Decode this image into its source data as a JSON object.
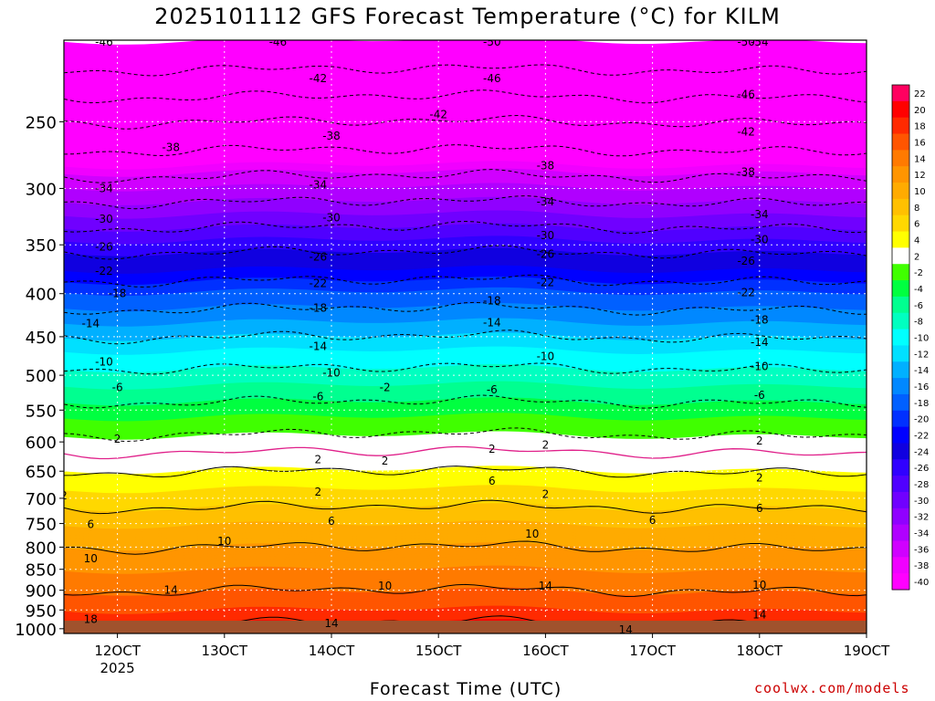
{
  "chart_data": {
    "type": "heatmap",
    "title": "2025101112 GFS Forecast Temperature (°C) for KILM",
    "xlabel": "Forecast Time (UTC)",
    "ylabel": "",
    "x_ticks": [
      "12OCT",
      "13OCT",
      "14OCT",
      "15OCT",
      "16OCT",
      "17OCT",
      "18OCT",
      "19OCT"
    ],
    "x_tick_sublabel": "2025",
    "y_ticks": [
      250,
      300,
      350,
      400,
      450,
      500,
      550,
      600,
      650,
      700,
      750,
      800,
      850,
      900,
      950,
      1000
    ],
    "y_range": [
      200,
      1013
    ],
    "x_range": [
      "11OCT 12Z",
      "19OCT 00Z"
    ],
    "colorbar": {
      "levels": [
        22,
        20,
        18,
        16,
        14,
        12,
        10,
        8,
        6,
        4,
        2,
        -2,
        -4,
        -6,
        -8,
        -10,
        -12,
        -14,
        -16,
        -18,
        -20,
        -22,
        -24,
        -26,
        -28,
        -30,
        -32,
        -34,
        -36,
        -38,
        -40
      ],
      "colors": [
        "#ff0060",
        "#ff0000",
        "#ff2a00",
        "#ff5500",
        "#ff7a00",
        "#ff9500",
        "#ffab00",
        "#ffc000",
        "#ffd800",
        "#ffff00",
        "#ffffff",
        "#40ff00",
        "#00ff40",
        "#00ff90",
        "#00ffc0",
        "#00ffff",
        "#00e0ff",
        "#00b0ff",
        "#0088ff",
        "#0060ff",
        "#0030ff",
        "#0000ff",
        "#1000e0",
        "#3000ff",
        "#5000ff",
        "#7000ff",
        "#9000ff",
        "#b000ff",
        "#d000ff",
        "#f000ff",
        "#ff00ff"
      ]
    },
    "levels_profile": [
      {
        "p": 200,
        "t": -58
      },
      {
        "p": 250,
        "t": -46
      },
      {
        "p": 300,
        "t": -36
      },
      {
        "p": 350,
        "t": -27
      },
      {
        "p": 400,
        "t": -20
      },
      {
        "p": 450,
        "t": -14
      },
      {
        "p": 500,
        "t": -9
      },
      {
        "p": 550,
        "t": -5
      },
      {
        "p": 600,
        "t": -1
      },
      {
        "p": 650,
        "t": 2
      },
      {
        "p": 700,
        "t": 5
      },
      {
        "p": 750,
        "t": 8
      },
      {
        "p": 800,
        "t": 10
      },
      {
        "p": 850,
        "t": 12
      },
      {
        "p": 900,
        "t": 14
      },
      {
        "p": 950,
        "t": 16
      },
      {
        "p": 1000,
        "t": 19
      }
    ],
    "contour_labels": [
      {
        "x": "11OCT 21Z",
        "p": 195,
        "v": "-46"
      },
      {
        "x": "13OCT 12Z",
        "p": 190,
        "v": "-46"
      },
      {
        "x": "15OCT 12Z",
        "p": 178,
        "v": "-50"
      },
      {
        "x": "18OCT 00Z",
        "p": 172,
        "v": "-54"
      },
      {
        "x": "17OCT 21Z",
        "p": 197,
        "v": "-50"
      },
      {
        "x": "13OCT 21Z",
        "p": 222,
        "v": "-42"
      },
      {
        "x": "15OCT 12Z",
        "p": 222,
        "v": "-46"
      },
      {
        "x": "15OCT 00Z",
        "p": 245,
        "v": "-42"
      },
      {
        "x": "17OCT 21Z",
        "p": 232,
        "v": "-46"
      },
      {
        "x": "17OCT 21Z",
        "p": 257,
        "v": "-42"
      },
      {
        "x": "12OCT 12Z",
        "p": 268,
        "v": "-38"
      },
      {
        "x": "14OCT 00Z",
        "p": 260,
        "v": "-38"
      },
      {
        "x": "16OCT 00Z",
        "p": 282,
        "v": "-38"
      },
      {
        "x": "17OCT 21Z",
        "p": 287,
        "v": "-38"
      },
      {
        "x": "11OCT 21Z",
        "p": 300,
        "v": "-34"
      },
      {
        "x": "13OCT 21Z",
        "p": 297,
        "v": "-34"
      },
      {
        "x": "16OCT 00Z",
        "p": 311,
        "v": "-34"
      },
      {
        "x": "18OCT 00Z",
        "p": 322,
        "v": "-34"
      },
      {
        "x": "11OCT 21Z",
        "p": 326,
        "v": "-30"
      },
      {
        "x": "14OCT 00Z",
        "p": 325,
        "v": "-30"
      },
      {
        "x": "16OCT 00Z",
        "p": 341,
        "v": "-30"
      },
      {
        "x": "18OCT 00Z",
        "p": 345,
        "v": "-30"
      },
      {
        "x": "11OCT 21Z",
        "p": 352,
        "v": "-26"
      },
      {
        "x": "13OCT 21Z",
        "p": 362,
        "v": "-26"
      },
      {
        "x": "16OCT 00Z",
        "p": 359,
        "v": "-26"
      },
      {
        "x": "17OCT 21Z",
        "p": 366,
        "v": "-26"
      },
      {
        "x": "11OCT 21Z",
        "p": 376,
        "v": "-22"
      },
      {
        "x": "13OCT 21Z",
        "p": 389,
        "v": "-22"
      },
      {
        "x": "16OCT 00Z",
        "p": 388,
        "v": "-22"
      },
      {
        "x": "17OCT 21Z",
        "p": 399,
        "v": "-22"
      },
      {
        "x": "12OCT 00Z",
        "p": 400,
        "v": "-18"
      },
      {
        "x": "13OCT 21Z",
        "p": 416,
        "v": "-18"
      },
      {
        "x": "15OCT 12Z",
        "p": 408,
        "v": "-18"
      },
      {
        "x": "18OCT 00Z",
        "p": 430,
        "v": "-18"
      },
      {
        "x": "11OCT 18Z",
        "p": 434,
        "v": "-14"
      },
      {
        "x": "13OCT 21Z",
        "p": 462,
        "v": "-14"
      },
      {
        "x": "15OCT 12Z",
        "p": 433,
        "v": "-14"
      },
      {
        "x": "18OCT 00Z",
        "p": 457,
        "v": "-14"
      },
      {
        "x": "11OCT 21Z",
        "p": 482,
        "v": "-10"
      },
      {
        "x": "14OCT 00Z",
        "p": 497,
        "v": "-10"
      },
      {
        "x": "16OCT 00Z",
        "p": 475,
        "v": "-10"
      },
      {
        "x": "18OCT 00Z",
        "p": 488,
        "v": "-10"
      },
      {
        "x": "12OCT 00Z",
        "p": 517,
        "v": "-6"
      },
      {
        "x": "13OCT 21Z",
        "p": 530,
        "v": "-6"
      },
      {
        "x": "15OCT 12Z",
        "p": 520,
        "v": "-6"
      },
      {
        "x": "18OCT 00Z",
        "p": 528,
        "v": "-6"
      },
      {
        "x": "14OCT 12Z",
        "p": 517,
        "v": "-2"
      },
      {
        "x": "12OCT 00Z",
        "p": 595,
        "v": "2"
      },
      {
        "x": "13OCT 21Z",
        "p": 630,
        "v": "2"
      },
      {
        "x": "14OCT 12Z",
        "p": 632,
        "v": "2"
      },
      {
        "x": "15OCT 12Z",
        "p": 612,
        "v": "2"
      },
      {
        "x": "16OCT 00Z",
        "p": 605,
        "v": "2"
      },
      {
        "x": "16OCT 00Z",
        "p": 692,
        "v": "2"
      },
      {
        "x": "18OCT 00Z",
        "p": 598,
        "v": "2"
      },
      {
        "x": "18OCT 00Z",
        "p": 662,
        "v": "2"
      },
      {
        "x": "11OCT 12Z",
        "p": 695,
        "v": "2"
      },
      {
        "x": "13OCT 21Z",
        "p": 688,
        "v": "2"
      },
      {
        "x": "11OCT 18Z",
        "p": 752,
        "v": "6"
      },
      {
        "x": "14OCT 00Z",
        "p": 745,
        "v": "6"
      },
      {
        "x": "15OCT 12Z",
        "p": 668,
        "v": "6"
      },
      {
        "x": "17OCT 00Z",
        "p": 743,
        "v": "6"
      },
      {
        "x": "18OCT 00Z",
        "p": 720,
        "v": "6"
      },
      {
        "x": "11OCT 18Z",
        "p": 825,
        "v": "10"
      },
      {
        "x": "13OCT 00Z",
        "p": 787,
        "v": "10"
      },
      {
        "x": "14OCT 12Z",
        "p": 890,
        "v": "10"
      },
      {
        "x": "15OCT 21Z",
        "p": 772,
        "v": "10"
      },
      {
        "x": "18OCT 00Z",
        "p": 888,
        "v": "10"
      },
      {
        "x": "12OCT 12Z",
        "p": 900,
        "v": "14"
      },
      {
        "x": "14OCT 00Z",
        "p": 985,
        "v": "14"
      },
      {
        "x": "16OCT 00Z",
        "p": 890,
        "v": "14"
      },
      {
        "x": "16OCT 18Z",
        "p": 1003,
        "v": "14"
      },
      {
        "x": "18OCT 00Z",
        "p": 962,
        "v": "14"
      },
      {
        "x": "11OCT 18Z",
        "p": 975,
        "v": "18"
      }
    ]
  },
  "credit": "coolwx.com/models"
}
